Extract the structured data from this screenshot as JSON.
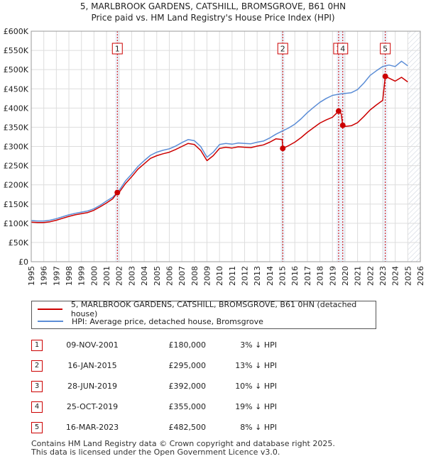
{
  "title_line1": "5, MARLBROOK GARDENS, CATSHILL, BROMSGROVE, B61 0HN",
  "title_line2": "Price paid vs. HM Land Registry's House Price Index (HPI)",
  "colors": {
    "price": "#cc0000",
    "hpi": "#5b8dd6",
    "grid": "#dddddd",
    "plot_bg": "#eef3fb",
    "marker_line": "#cc0000"
  },
  "legend": {
    "price_label": "5, MARLBROOK GARDENS, CATSHILL, BROMSGROVE, B61 0HN (detached house)",
    "hpi_label": "HPI: Average price, detached house, Bromsgrove"
  },
  "events": [
    {
      "num": "1",
      "date": "09-NOV-2001",
      "price": "£180,000",
      "hpi": "3% ↓ HPI"
    },
    {
      "num": "2",
      "date": "16-JAN-2015",
      "price": "£295,000",
      "hpi": "13% ↓ HPI"
    },
    {
      "num": "3",
      "date": "28-JUN-2019",
      "price": "£392,000",
      "hpi": "10% ↓ HPI"
    },
    {
      "num": "4",
      "date": "25-OCT-2019",
      "price": "£355,000",
      "hpi": "19% ↓ HPI"
    },
    {
      "num": "5",
      "date": "16-MAR-2023",
      "price": "£482,500",
      "hpi": "8% ↓ HPI"
    }
  ],
  "footer_line1": "Contains HM Land Registry data © Crown copyright and database right 2025.",
  "footer_line2": "This data is licensed under the Open Government Licence v3.0.",
  "chart_data": {
    "type": "line",
    "title": "5, MARLBROOK GARDENS, CATSHILL, BROMSGROVE, B61 0HN — Price paid vs. HM Land Registry's House Price Index (HPI)",
    "xlim": [
      1995,
      2026
    ],
    "ylim": [
      0,
      600000
    ],
    "y_ticks": [
      {
        "v": 0,
        "label": "£0"
      },
      {
        "v": 50000,
        "label": "£50K"
      },
      {
        "v": 100000,
        "label": "£100K"
      },
      {
        "v": 150000,
        "label": "£150K"
      },
      {
        "v": 200000,
        "label": "£200K"
      },
      {
        "v": 250000,
        "label": "£250K"
      },
      {
        "v": 300000,
        "label": "£300K"
      },
      {
        "v": 350000,
        "label": "£350K"
      },
      {
        "v": 400000,
        "label": "£400K"
      },
      {
        "v": 450000,
        "label": "£450K"
      },
      {
        "v": 500000,
        "label": "£500K"
      },
      {
        "v": 550000,
        "label": "£550K"
      },
      {
        "v": 600000,
        "label": "£600K"
      }
    ],
    "x_ticks": [
      "1995",
      "1996",
      "1997",
      "1998",
      "1999",
      "2000",
      "2001",
      "2002",
      "2003",
      "2004",
      "2005",
      "2006",
      "2007",
      "2008",
      "2009",
      "2010",
      "2011",
      "2012",
      "2013",
      "2014",
      "2015",
      "2016",
      "2017",
      "2018",
      "2019",
      "2020",
      "2021",
      "2022",
      "2023",
      "2024",
      "2025",
      "2026"
    ],
    "forecast_from": 2025.0,
    "sales": [
      {
        "num": "1",
        "x": 2001.86,
        "y": 180000
      },
      {
        "num": "2",
        "x": 2015.04,
        "y": 295000
      },
      {
        "num": "3",
        "x": 2019.49,
        "y": 392000
      },
      {
        "num": "4",
        "x": 2019.82,
        "y": 355000
      },
      {
        "num": "5",
        "x": 2023.21,
        "y": 482500
      }
    ],
    "series": [
      {
        "name": "HPI: Average price, detached house, Bromsgrove",
        "points": [
          [
            1995.0,
            107000
          ],
          [
            1995.5,
            106000
          ],
          [
            1996.0,
            106000
          ],
          [
            1996.5,
            108000
          ],
          [
            1997.0,
            112000
          ],
          [
            1997.5,
            117000
          ],
          [
            1998.0,
            122000
          ],
          [
            1998.5,
            126000
          ],
          [
            1999.0,
            129000
          ],
          [
            1999.5,
            132000
          ],
          [
            2000.0,
            138000
          ],
          [
            2000.5,
            147000
          ],
          [
            2001.0,
            158000
          ],
          [
            2001.5,
            168000
          ],
          [
            2002.0,
            185000
          ],
          [
            2002.5,
            210000
          ],
          [
            2003.0,
            228000
          ],
          [
            2003.5,
            248000
          ],
          [
            2004.0,
            263000
          ],
          [
            2004.5,
            277000
          ],
          [
            2005.0,
            285000
          ],
          [
            2005.5,
            290000
          ],
          [
            2006.0,
            294000
          ],
          [
            2006.5,
            301000
          ],
          [
            2007.0,
            310000
          ],
          [
            2007.5,
            318000
          ],
          [
            2008.0,
            315000
          ],
          [
            2008.5,
            300000
          ],
          [
            2009.0,
            272000
          ],
          [
            2009.5,
            285000
          ],
          [
            2010.0,
            305000
          ],
          [
            2010.5,
            308000
          ],
          [
            2011.0,
            306000
          ],
          [
            2011.5,
            309000
          ],
          [
            2012.0,
            308000
          ],
          [
            2012.5,
            307000
          ],
          [
            2013.0,
            311000
          ],
          [
            2013.5,
            314000
          ],
          [
            2014.0,
            322000
          ],
          [
            2014.5,
            332000
          ],
          [
            2015.0,
            340000
          ],
          [
            2015.5,
            348000
          ],
          [
            2016.0,
            358000
          ],
          [
            2016.5,
            372000
          ],
          [
            2017.0,
            388000
          ],
          [
            2017.5,
            402000
          ],
          [
            2018.0,
            415000
          ],
          [
            2018.5,
            425000
          ],
          [
            2019.0,
            433000
          ],
          [
            2019.5,
            436000
          ],
          [
            2020.0,
            438000
          ],
          [
            2020.5,
            440000
          ],
          [
            2021.0,
            448000
          ],
          [
            2021.5,
            465000
          ],
          [
            2022.0,
            485000
          ],
          [
            2022.5,
            497000
          ],
          [
            2023.0,
            508000
          ],
          [
            2023.5,
            512000
          ],
          [
            2024.0,
            508000
          ],
          [
            2024.5,
            522000
          ],
          [
            2025.0,
            510000
          ]
        ]
      },
      {
        "name": "5, MARLBROOK GARDENS, CATSHILL, BROMSGROVE, B61 0HN (detached house)",
        "points": [
          [
            1995.0,
            103000
          ],
          [
            1995.5,
            102000
          ],
          [
            1996.0,
            102000
          ],
          [
            1996.5,
            104000
          ],
          [
            1997.0,
            108000
          ],
          [
            1997.5,
            113000
          ],
          [
            1998.0,
            118000
          ],
          [
            1998.5,
            122000
          ],
          [
            1999.0,
            125000
          ],
          [
            1999.5,
            128000
          ],
          [
            2000.0,
            134000
          ],
          [
            2000.5,
            143000
          ],
          [
            2001.0,
            153000
          ],
          [
            2001.5,
            164000
          ],
          [
            2001.86,
            180000
          ],
          [
            2002.0,
            180000
          ],
          [
            2002.5,
            203000
          ],
          [
            2003.0,
            221000
          ],
          [
            2003.5,
            241000
          ],
          [
            2004.0,
            255000
          ],
          [
            2004.5,
            269000
          ],
          [
            2005.0,
            276000
          ],
          [
            2005.5,
            281000
          ],
          [
            2006.0,
            285000
          ],
          [
            2006.5,
            292000
          ],
          [
            2007.0,
            300000
          ],
          [
            2007.5,
            308000
          ],
          [
            2008.0,
            305000
          ],
          [
            2008.5,
            290000
          ],
          [
            2009.0,
            263000
          ],
          [
            2009.5,
            276000
          ],
          [
            2010.0,
            295000
          ],
          [
            2010.5,
            298000
          ],
          [
            2011.0,
            296000
          ],
          [
            2011.5,
            299000
          ],
          [
            2012.0,
            298000
          ],
          [
            2012.5,
            297000
          ],
          [
            2013.0,
            301000
          ],
          [
            2013.5,
            304000
          ],
          [
            2014.0,
            311000
          ],
          [
            2014.5,
            320000
          ],
          [
            2015.0,
            318000
          ],
          [
            2015.04,
            295000
          ],
          [
            2015.5,
            302000
          ],
          [
            2016.0,
            311000
          ],
          [
            2016.5,
            323000
          ],
          [
            2017.0,
            337000
          ],
          [
            2017.5,
            349000
          ],
          [
            2018.0,
            361000
          ],
          [
            2018.5,
            369000
          ],
          [
            2019.0,
            376000
          ],
          [
            2019.49,
            392000
          ],
          [
            2019.7,
            385000
          ],
          [
            2019.82,
            355000
          ],
          [
            2020.0,
            352000
          ],
          [
            2020.5,
            354000
          ],
          [
            2021.0,
            362000
          ],
          [
            2021.5,
            378000
          ],
          [
            2022.0,
            395000
          ],
          [
            2022.5,
            408000
          ],
          [
            2023.0,
            420000
          ],
          [
            2023.21,
            482500
          ],
          [
            2023.5,
            478000
          ],
          [
            2024.0,
            470000
          ],
          [
            2024.5,
            480000
          ],
          [
            2025.0,
            468000
          ]
        ]
      }
    ]
  }
}
